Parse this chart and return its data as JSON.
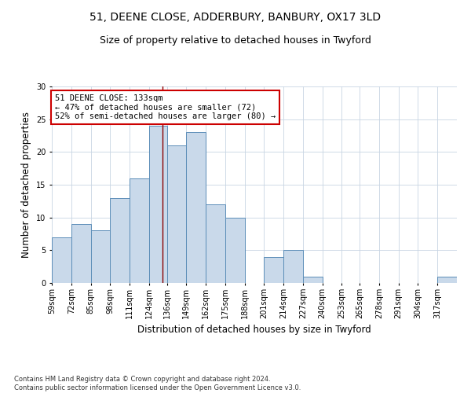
{
  "title_line1": "51, DEENE CLOSE, ADDERBURY, BANBURY, OX17 3LD",
  "title_line2": "Size of property relative to detached houses in Twyford",
  "xlabel": "Distribution of detached houses by size in Twyford",
  "ylabel": "Number of detached properties",
  "footnote": "Contains HM Land Registry data © Crown copyright and database right 2024.\nContains public sector information licensed under the Open Government Licence v3.0.",
  "bin_labels": [
    "59sqm",
    "72sqm",
    "85sqm",
    "98sqm",
    "111sqm",
    "124sqm",
    "136sqm",
    "149sqm",
    "162sqm",
    "175sqm",
    "188sqm",
    "201sqm",
    "214sqm",
    "227sqm",
    "240sqm",
    "253sqm",
    "265sqm",
    "278sqm",
    "291sqm",
    "304sqm",
    "317sqm"
  ],
  "bar_values": [
    7,
    9,
    8,
    13,
    16,
    24,
    21,
    23,
    12,
    10,
    0,
    4,
    5,
    1,
    0,
    0,
    0,
    0,
    0,
    0,
    1
  ],
  "bin_edges": [
    59,
    72,
    85,
    98,
    111,
    124,
    136,
    149,
    162,
    175,
    188,
    201,
    214,
    227,
    240,
    253,
    265,
    278,
    291,
    304,
    317,
    330
  ],
  "bar_fill_color": "#c9d9ea",
  "bar_edge_color": "#5b8db8",
  "property_value": 133,
  "vline_color": "#8b0000",
  "annotation_text": "51 DEENE CLOSE: 133sqm\n← 47% of detached houses are smaller (72)\n52% of semi-detached houses are larger (80) →",
  "annotation_box_color": "#ffffff",
  "annotation_border_color": "#cc0000",
  "ylim": [
    0,
    30
  ],
  "yticks": [
    0,
    5,
    10,
    15,
    20,
    25,
    30
  ],
  "background_color": "#ffffff",
  "grid_color": "#c8d4e3",
  "title_fontsize": 10,
  "subtitle_fontsize": 9,
  "axis_label_fontsize": 8.5,
  "tick_fontsize": 7,
  "annotation_fontsize": 7.5,
  "footnote_fontsize": 6
}
